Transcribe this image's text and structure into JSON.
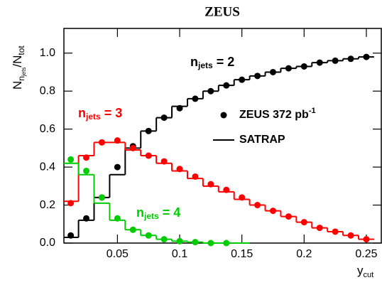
{
  "chart_data": {
    "type": "step",
    "title": "ZEUS",
    "x_label": {
      "main": "y",
      "sub": "cut"
    },
    "y_label": {
      "main": "N",
      "sub": "n",
      "subsub": "jets",
      "mid": "/N",
      "sub2": "tot"
    },
    "x": [
      0.0125,
      0.025,
      0.0375,
      0.05,
      0.0625,
      0.075,
      0.0875,
      0.1,
      0.1125,
      0.125,
      0.1375,
      0.15,
      0.1625,
      0.175,
      0.1875,
      0.2,
      0.2125,
      0.225,
      0.2375,
      0.25
    ],
    "bin_width": 0.0125,
    "xlim": [
      0.007,
      0.262
    ],
    "ylim": [
      0,
      1.13
    ],
    "xticks": [
      0.05,
      0.1,
      0.15,
      0.2,
      0.25
    ],
    "yticks": [
      {
        "value": 0,
        "label": "0.0"
      },
      0.2,
      0.4,
      0.6,
      0.8,
      {
        "value": 1,
        "label": "1.0"
      }
    ],
    "series": [
      {
        "kind": "data",
        "color": "#000000",
        "values": [
          0.04,
          0.13,
          0.24,
          0.4,
          0.51,
          0.59,
          0.66,
          0.71,
          0.76,
          0.8,
          0.83,
          0.86,
          0.88,
          0.9,
          0.92,
          0.93,
          0.95,
          0.96,
          0.97,
          0.98
        ]
      },
      {
        "kind": "data",
        "color": "#ff0000",
        "values": [
          0.21,
          0.45,
          0.53,
          0.54,
          0.5,
          0.46,
          0.43,
          0.39,
          0.35,
          0.31,
          0.28,
          0.24,
          0.2,
          0.17,
          0.14,
          0.11,
          0.08,
          0.06,
          0.04,
          0.02
        ]
      },
      {
        "kind": "data",
        "color": "#00cc00",
        "values": [
          0.44,
          0.38,
          0.24,
          0.13,
          0.07,
          0.04,
          0.02,
          0.01,
          0.005,
          0,
          0,
          null,
          null,
          null,
          null,
          null,
          null,
          null,
          null,
          null
        ]
      },
      {
        "kind": "model",
        "color": "#000000",
        "values": [
          0.03,
          0.12,
          0.24,
          0.36,
          0.5,
          0.59,
          0.66,
          0.72,
          0.76,
          0.8,
          0.83,
          0.86,
          0.88,
          0.9,
          0.92,
          0.93,
          0.95,
          0.96,
          0.97,
          0.98
        ]
      },
      {
        "kind": "model",
        "color": "#ff0000",
        "values": [
          0.22,
          0.46,
          0.53,
          0.53,
          0.49,
          0.46,
          0.42,
          0.38,
          0.34,
          0.3,
          0.27,
          0.23,
          0.2,
          0.17,
          0.14,
          0.11,
          0.08,
          0.06,
          0.04,
          0.02
        ]
      },
      {
        "kind": "model",
        "color": "#00cc00",
        "values": [
          0.42,
          0.36,
          0.21,
          0.12,
          0.07,
          0.04,
          0.02,
          0.01,
          0.005,
          0,
          0,
          0,
          null,
          null,
          null,
          null,
          null,
          null,
          null,
          null
        ]
      }
    ],
    "annotations": [
      {
        "main": "n",
        "sub": "jets",
        "rest": " = 2",
        "color": "#000000"
      },
      {
        "main": "n",
        "sub": "jets",
        "rest": " = 3",
        "color": "#ff0000"
      },
      {
        "main": "n",
        "sub": "jets",
        "rest": " = 4",
        "color": "#00cc00"
      }
    ],
    "legend": [
      {
        "label": "ZEUS 372 pb",
        "sup": "-1",
        "style": "marker"
      },
      {
        "label": "SATRAP",
        "style": "line"
      }
    ]
  }
}
